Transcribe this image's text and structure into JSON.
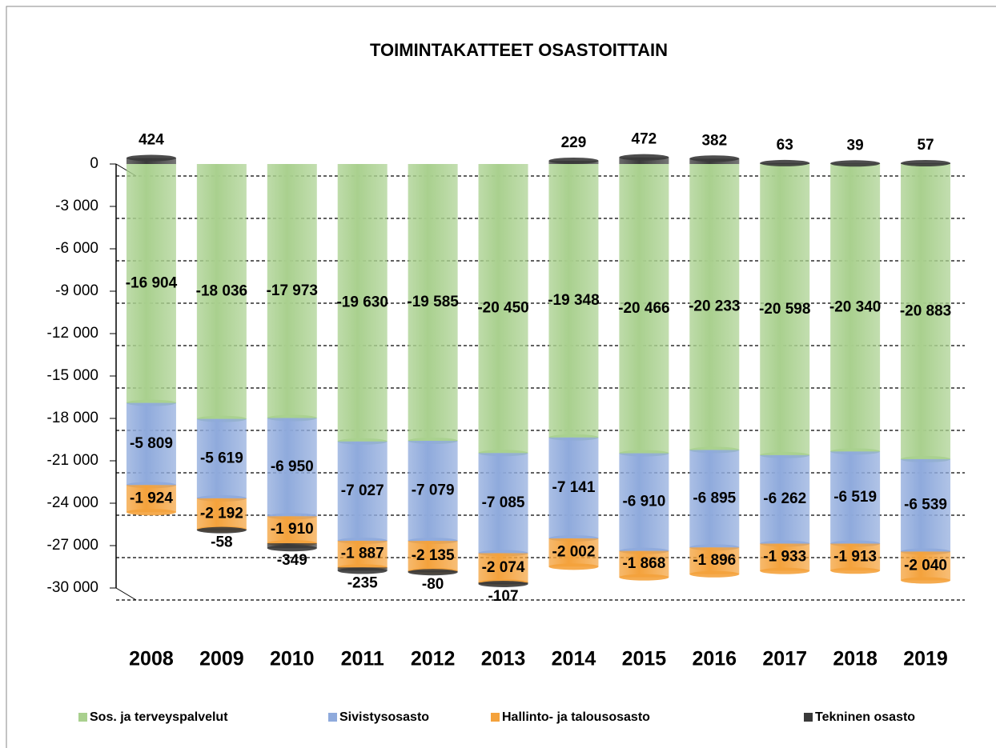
{
  "chart_data": {
    "type": "bar",
    "stacked": true,
    "title": "TOIMINTAKATTEET OSASTOITTAIN",
    "categories": [
      "2008",
      "2009",
      "2010",
      "2011",
      "2012",
      "2013",
      "2014",
      "2015",
      "2016",
      "2017",
      "2018",
      "2019"
    ],
    "series": [
      {
        "name": "Sos. ja terveyspalvelut",
        "color": "#a9d08e",
        "values": [
          -16904,
          -18036,
          -17973,
          -19630,
          -19585,
          -20450,
          -19348,
          -20466,
          -20233,
          -20598,
          -20340,
          -20883
        ],
        "value_labels": [
          "-16 904",
          "-18 036",
          "-17 973",
          "-19 630",
          "-19 585",
          "-20 450",
          "-19 348",
          "-20 466",
          "-20 233",
          "-20 598",
          "-20 340",
          "-20 883"
        ]
      },
      {
        "name": "Sivistysosasto",
        "color": "#8faadc",
        "values": [
          -5809,
          -5619,
          -6950,
          -7027,
          -7079,
          -7085,
          -7141,
          -6910,
          -6895,
          -6262,
          -6519,
          -6539
        ],
        "value_labels": [
          "-5 809",
          "-5 619",
          "-6 950",
          "-7 027",
          "-7 079",
          "-7 085",
          "-7 141",
          "-6 910",
          "-6 895",
          "-6 262",
          "-6 519",
          "-6 539"
        ]
      },
      {
        "name": "Hallinto- ja talousosasto",
        "color": "#f4a23c",
        "values": [
          -1924,
          -2192,
          -1910,
          -1887,
          -2135,
          -2074,
          -2002,
          -1868,
          -1896,
          -1933,
          -1913,
          -2040
        ],
        "value_labels": [
          "-1 924",
          "-2 192",
          "-1 910",
          "-1 887",
          "-2 135",
          "-2 074",
          "-2 002",
          "-1 868",
          "-1 896",
          "-1 933",
          "-1 913",
          "-2 040"
        ]
      },
      {
        "name": "Tekninen osasto",
        "color": "#3a3a3a",
        "values": [
          424,
          -58,
          -349,
          -235,
          -80,
          -107,
          229,
          472,
          382,
          63,
          39,
          57
        ]
      }
    ],
    "ylim": [
      -30000,
      0
    ],
    "yticks": [
      0,
      {
        "value": -3000,
        "label": "-3 000"
      },
      {
        "value": -6000,
        "label": "-6 000"
      },
      {
        "value": -9000,
        "label": "-9 000"
      },
      {
        "value": -12000,
        "label": "-12 000"
      },
      {
        "value": -15000,
        "label": "-15 000"
      },
      {
        "value": -18000,
        "label": "-18 000"
      },
      {
        "value": -21000,
        "label": "-21 000"
      },
      {
        "value": -24000,
        "label": "-24 000"
      },
      {
        "value": -27000,
        "label": "-27 000"
      },
      {
        "value": -30000,
        "label": "-30 000"
      }
    ],
    "grid": true,
    "legend": "bottom"
  }
}
